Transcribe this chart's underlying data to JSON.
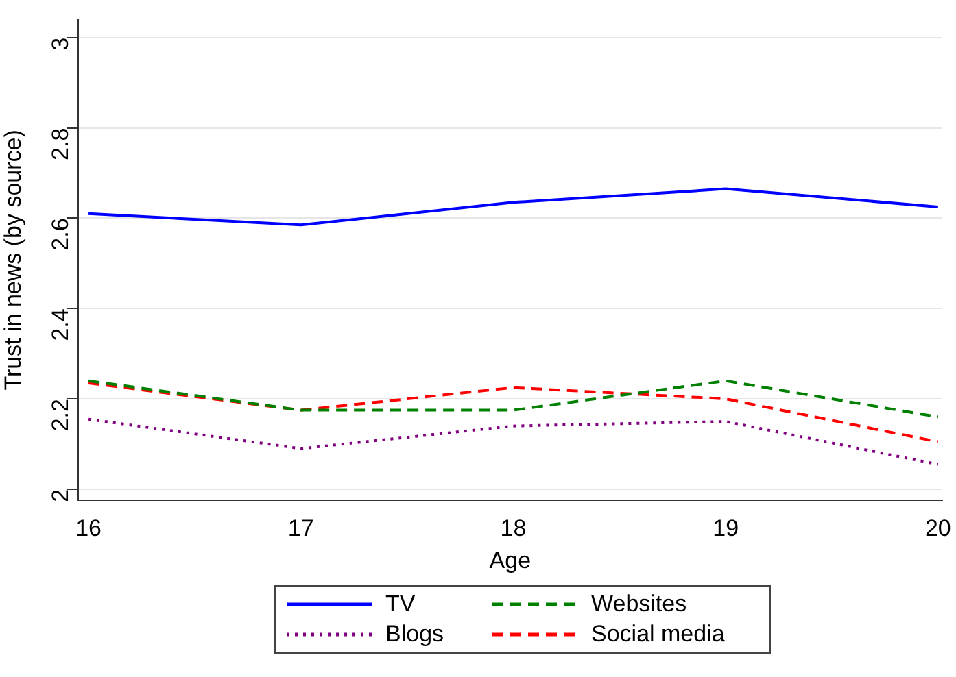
{
  "chart_data": {
    "type": "line",
    "xlabel": "Age",
    "ylabel": "Trust in news (by source)",
    "x": [
      16,
      17,
      18,
      19,
      20
    ],
    "series": [
      {
        "name": "TV",
        "color": "#0000ff",
        "line_style": "solid",
        "values": [
          2.61,
          2.585,
          2.635,
          2.665,
          2.625
        ]
      },
      {
        "name": "Websites",
        "color": "#008000",
        "line_style": "dashed",
        "values": [
          2.24,
          2.175,
          2.175,
          2.24,
          2.16
        ]
      },
      {
        "name": "Blogs",
        "color": "#800080",
        "line_style": "dotted",
        "values": [
          2.155,
          2.09,
          2.14,
          2.15,
          2.055
        ]
      },
      {
        "name": "Social media",
        "color": "#ff0000",
        "line_style": "dashed",
        "values": [
          2.235,
          2.175,
          2.225,
          2.2,
          2.105
        ]
      }
    ],
    "xlim": [
      15.95,
      20.02
    ],
    "xticks": [
      16,
      17,
      18,
      19,
      20
    ],
    "ylim": [
      1.975,
      3.04
    ],
    "yticks": [
      2,
      2.2,
      2.4,
      2.6,
      2.8,
      3
    ],
    "grid": "y",
    "legend": "bottom",
    "marker": "none"
  }
}
